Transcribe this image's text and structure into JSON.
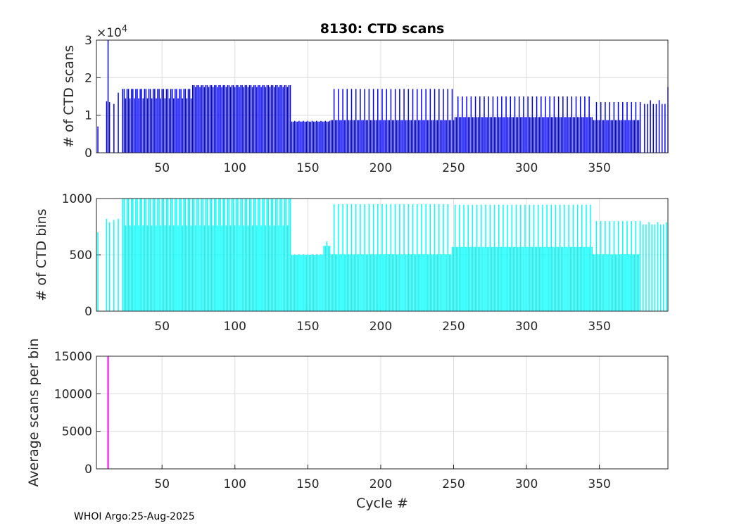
{
  "chart_data": [
    {
      "type": "bar",
      "title": "8130: CTD scans",
      "xlabel": "",
      "ylabel": "# of CTD scans",
      "y_exponent_label": "×10",
      "y_exponent_power": "4",
      "xlim": [
        5,
        397
      ],
      "ylim": [
        0,
        3
      ],
      "xticks": [
        50,
        100,
        150,
        200,
        250,
        300,
        350
      ],
      "yticks": [
        0,
        1,
        2,
        3
      ],
      "color": "#0000ff",
      "grid": true,
      "series_rule": "piecewise",
      "segments": [
        {
          "from": 6,
          "to": 6,
          "base": 0.7,
          "alt": 0.7,
          "step": 1
        },
        {
          "from": 12,
          "to": 12,
          "base": 1.37,
          "alt": 1.37,
          "step": 1
        },
        {
          "from": 13,
          "to": 13,
          "base": 3.0,
          "alt": 3.0,
          "step": 1
        },
        {
          "from": 14,
          "to": 14,
          "base": 1.35,
          "alt": 1.35,
          "step": 1
        },
        {
          "from": 17,
          "to": 17,
          "base": 1.3,
          "alt": 1.3,
          "step": 1
        },
        {
          "from": 20,
          "to": 20,
          "base": 1.6,
          "alt": 1.6,
          "step": 1
        },
        {
          "from": 23,
          "to": 70,
          "base": 1.7,
          "alt": 1.45,
          "step": 1
        },
        {
          "from": 71,
          "to": 138,
          "base": 1.8,
          "alt": 1.75,
          "step": 1
        },
        {
          "from": 139,
          "to": 165,
          "base": 0.83,
          "alt": 0.85,
          "step": 1
        },
        {
          "from": 166,
          "to": 250,
          "base": 0.87,
          "alt": 1.7,
          "step": 1
        },
        {
          "from": 251,
          "to": 345,
          "base": 0.95,
          "alt": 1.5,
          "step": 1
        },
        {
          "from": 346,
          "to": 378,
          "base": 0.87,
          "alt": 1.35,
          "step": 1
        },
        {
          "from": 381,
          "to": 396,
          "base": 1.3,
          "alt": 1.4,
          "step": 2
        },
        {
          "from": 397,
          "to": 397,
          "base": 1.75,
          "alt": 1.75,
          "step": 1
        }
      ]
    },
    {
      "type": "bar",
      "title": "",
      "xlabel": "",
      "ylabel": "# of CTD bins",
      "xlim": [
        5,
        397
      ],
      "ylim": [
        0,
        1000
      ],
      "xticks": [
        50,
        100,
        150,
        200,
        250,
        300,
        350
      ],
      "yticks": [
        0,
        500,
        1000
      ],
      "color": "#00ffff",
      "grid": true,
      "series_rule": "piecewise",
      "segments": [
        {
          "from": 6,
          "to": 6,
          "base": 700,
          "alt": 700,
          "step": 1
        },
        {
          "from": 12,
          "to": 12,
          "base": 820,
          "alt": 820,
          "step": 1
        },
        {
          "from": 14,
          "to": 14,
          "base": 790,
          "alt": 790,
          "step": 1
        },
        {
          "from": 17,
          "to": 17,
          "base": 810,
          "alt": 810,
          "step": 1
        },
        {
          "from": 20,
          "to": 20,
          "base": 820,
          "alt": 820,
          "step": 1
        },
        {
          "from": 23,
          "to": 138,
          "base": 1000,
          "alt": 760,
          "step": 1
        },
        {
          "from": 139,
          "to": 160,
          "base": 500,
          "alt": 505,
          "step": 1
        },
        {
          "from": 161,
          "to": 165,
          "base": 580,
          "alt": 620,
          "step": 1
        },
        {
          "from": 166,
          "to": 248,
          "base": 505,
          "alt": 950,
          "step": 1
        },
        {
          "from": 249,
          "to": 345,
          "base": 570,
          "alt": 945,
          "step": 1
        },
        {
          "from": 346,
          "to": 378,
          "base": 505,
          "alt": 800,
          "step": 1
        },
        {
          "from": 380,
          "to": 397,
          "base": 770,
          "alt": 790,
          "step": 2
        }
      ]
    },
    {
      "type": "bar",
      "title": "",
      "xlabel": "Cycle #",
      "ylabel": "Average scans per bin",
      "xlim": [
        5,
        397
      ],
      "ylim": [
        0,
        15000
      ],
      "xticks": [
        50,
        100,
        150,
        200,
        250,
        300,
        350
      ],
      "yticks": [
        0,
        5000,
        10000,
        15000
      ],
      "color": "#ff00ff",
      "grid": true,
      "series_rule": "explicit",
      "points": [
        {
          "x": 13,
          "y": 15000
        }
      ]
    }
  ],
  "footer": {
    "text": "WHOI Argo:25-Aug-2025"
  }
}
